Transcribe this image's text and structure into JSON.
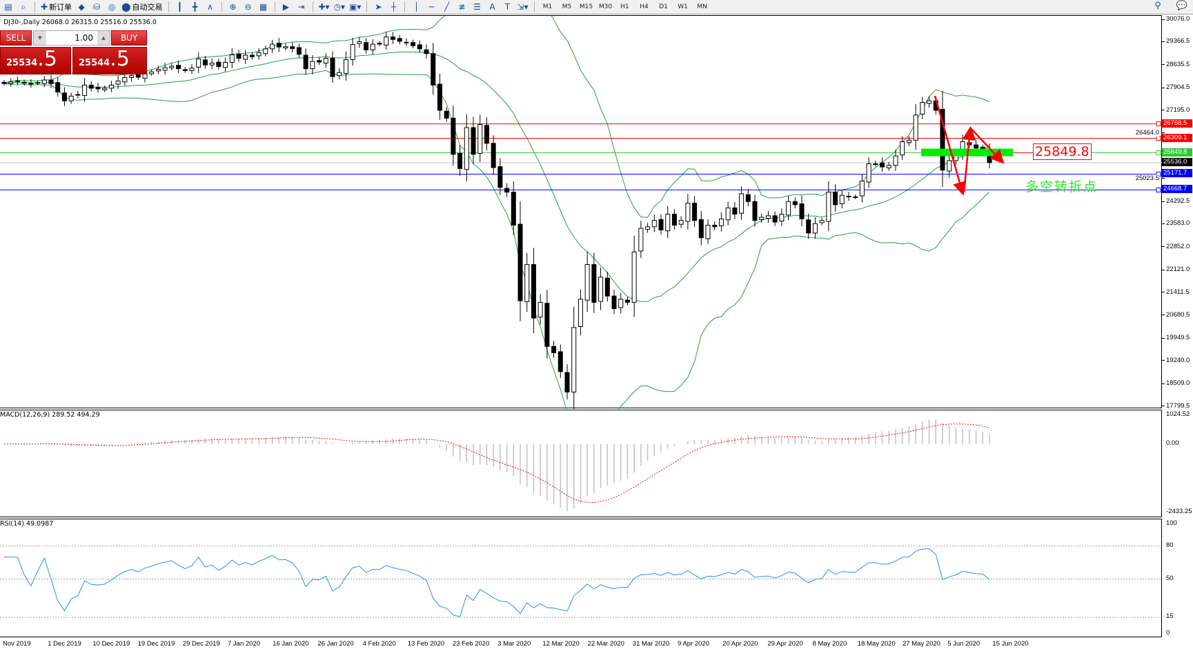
{
  "toolbar": {
    "items": [
      {
        "name": "new-chart-icon",
        "glyph": "▤"
      },
      {
        "name": "zoom-search-icon",
        "glyph": "⌕"
      },
      {
        "sep": true
      },
      {
        "name": "new-order-button",
        "glyph": "✚",
        "label": "新订单"
      },
      {
        "name": "metaeditor-icon",
        "glyph": "◆"
      },
      {
        "name": "database-icon",
        "glyph": "⛁"
      },
      {
        "name": "signal-icon",
        "glyph": "◎"
      },
      {
        "name": "auto-trading-button",
        "glyph": "⬤",
        "label": "自动交易"
      },
      {
        "sep": true
      },
      {
        "name": "bar-chart-icon",
        "glyph": "┃"
      },
      {
        "name": "candlestick-icon",
        "glyph": "╋"
      },
      {
        "name": "line-chart-icon",
        "glyph": "∧"
      },
      {
        "sep": true
      },
      {
        "name": "zoom-in-icon",
        "glyph": "⊕"
      },
      {
        "name": "zoom-out-icon",
        "glyph": "⊖"
      },
      {
        "name": "tile-windows-icon",
        "glyph": "▦"
      },
      {
        "sep": true
      },
      {
        "name": "autoscroll-icon",
        "glyph": "▶"
      },
      {
        "name": "chart-shift-icon",
        "glyph": "⇥"
      },
      {
        "sep": true
      },
      {
        "name": "indicators-icon",
        "glyph": "✚▾"
      },
      {
        "name": "periods-clock-icon",
        "glyph": "◷▾"
      },
      {
        "name": "templates-icon",
        "glyph": "▣▾"
      },
      {
        "sep": true
      },
      {
        "name": "cursor-icon",
        "glyph": "➤"
      },
      {
        "name": "crosshair-icon",
        "glyph": "┼"
      },
      {
        "sep": true
      },
      {
        "name": "vertical-line-icon",
        "glyph": "│"
      },
      {
        "name": "horizontal-line-icon",
        "glyph": "─"
      },
      {
        "name": "trendline-icon",
        "glyph": "╱"
      },
      {
        "name": "equidistant-channel-icon",
        "glyph": "≢"
      },
      {
        "name": "fibonacci-icon",
        "glyph": "☰"
      },
      {
        "name": "text-icon",
        "glyph": "A"
      },
      {
        "name": "text-label-icon",
        "glyph": "T"
      },
      {
        "name": "arrows-icon",
        "glyph": "⇲▾"
      },
      {
        "sep": true
      }
    ],
    "timeframes": [
      "M1",
      "M5",
      "M15",
      "M30",
      "H1",
      "H4",
      "D1",
      "W1",
      "MN"
    ],
    "right_icons": [
      {
        "name": "search-icon",
        "glyph": "⚲"
      },
      {
        "name": "chat-icon",
        "glyph": "💬"
      }
    ]
  },
  "chart": {
    "header": "DJ30-,Daily  26068.0 26315.0 25516.0 25536.0",
    "symbol": "DJ30-",
    "period": "Daily",
    "price_axis": [
      "30076.0",
      "29366.5",
      "28635.5",
      "27904.5",
      "27195.0",
      "26464.0",
      "25023.5",
      "24292.5",
      "23583.0",
      "22852.0",
      "22121.0",
      "21411.5",
      "20680.5",
      "19949.5",
      "19240.0",
      "18509.0",
      "17799.5"
    ],
    "price_range": [
      17799.5,
      30076.0
    ],
    "levels": [
      {
        "value": 26768.5,
        "label": "26768.5",
        "color": "#ff0000"
      },
      {
        "value": 26309.1,
        "label": "26309.1",
        "color": "#ff0000"
      },
      {
        "value": 25849.8,
        "label": "25849.8",
        "color": "#32c832"
      },
      {
        "value": 25536.0,
        "label": "25536.0",
        "color": "#000000",
        "line": "#c0c0c0"
      },
      {
        "value": 25171.7,
        "label": "25171.7",
        "color": "#0000ff"
      },
      {
        "value": 24668.7,
        "label": "24668.7",
        "color": "#0000ff"
      }
    ],
    "annotation_box": "25849.8",
    "annotation_text": "多空转折点",
    "colors": {
      "bands": "#20a040",
      "bull": "#ffffff",
      "bear": "#000000",
      "annotation_bar": "#00ee00",
      "arrows": "#ff0000"
    },
    "closes": [
      28050,
      28100,
      28120,
      28060,
      28030,
      28080,
      28160,
      28050,
      27780,
      27500,
      27650,
      27700,
      28000,
      27900,
      27880,
      27900,
      28000,
      28130,
      28240,
      28300,
      28250,
      28360,
      28420,
      28500,
      28550,
      28600,
      28520,
      28460,
      28540,
      28830,
      28640,
      28700,
      28590,
      28720,
      28960,
      28850,
      28950,
      28900,
      29030,
      29150,
      29300,
      29210,
      29220,
      29160,
      28980,
      28520,
      28750,
      28730,
      28850,
      28270,
      28400,
      28810,
      29290,
      29380,
      29120,
      29300,
      29300,
      29530,
      29450,
      29390,
      29350,
      29250,
      29150,
      29000,
      28000,
      27200,
      26950,
      25800,
      25350,
      26650,
      25800,
      26750,
      26150,
      25380,
      24750,
      24600,
      23550,
      21150,
      22300,
      20600,
      21100,
      19700,
      19500,
      18900,
      18250,
      20300,
      21200,
      22300,
      21100,
      21900,
      21300,
      20900,
      21200,
      21100,
      22700,
      23450,
      23500,
      23700,
      23400,
      23900,
      23550,
      23700,
      24250,
      23700,
      23150,
      23550,
      23500,
      23750,
      24100,
      23900,
      24550,
      24300,
      23700,
      23800,
      23850,
      23650,
      23900,
      24300,
      24200,
      23750,
      23300,
      23600,
      23700,
      24600,
      24200,
      24500,
      24450,
      24450,
      24950,
      25500,
      25500,
      25400,
      25450,
      25750,
      26200,
      26250,
      27050,
      27450,
      27500,
      27200,
      25300,
      25600,
      25800,
      26200,
      26100,
      26000,
      25980,
      25536
    ]
  },
  "macd": {
    "title": "MACD(12,26,9) 289.52 494.29",
    "axis": [
      "1024.52",
      "0.00",
      "-2433.25"
    ],
    "range": [
      -2433.25,
      1024.52
    ],
    "colors": {
      "hist": "#c0c0c0",
      "signal": "#ff0000"
    }
  },
  "rsi": {
    "title": "RSI(14) 49.0987",
    "axis": [
      "100",
      "80",
      "50",
      "15",
      "0"
    ],
    "levels": [
      80,
      50,
      15
    ],
    "color": "#1e90ff"
  },
  "time_axis": [
    "Nov 2019",
    "1 Dec 2019",
    "10 Dec 2019",
    "19 Dec 2019",
    "29 Dec 2019",
    "7 Jan 2020",
    "16 Jan 2020",
    "26 Jan 2020",
    "4 Feb 2020",
    "13 Feb 2020",
    "23 Feb 2020",
    "3 Mar 2020",
    "12 Mar 2020",
    "22 Mar 2020",
    "31 Mar 2020",
    "9 Apr 2020",
    "20 Apr 2020",
    "29 Apr 2020",
    "8 May 2020",
    "18 May 2020",
    "27 May 2020",
    "5 Jun 2020",
    "15 Jun 2020"
  ],
  "trade_panel": {
    "sell_label": "SELL",
    "buy_label": "BUY",
    "volume": "1.00",
    "sell_main": "25534",
    "sell_frac": ".5",
    "buy_main": "25544",
    "buy_frac": ".5"
  }
}
